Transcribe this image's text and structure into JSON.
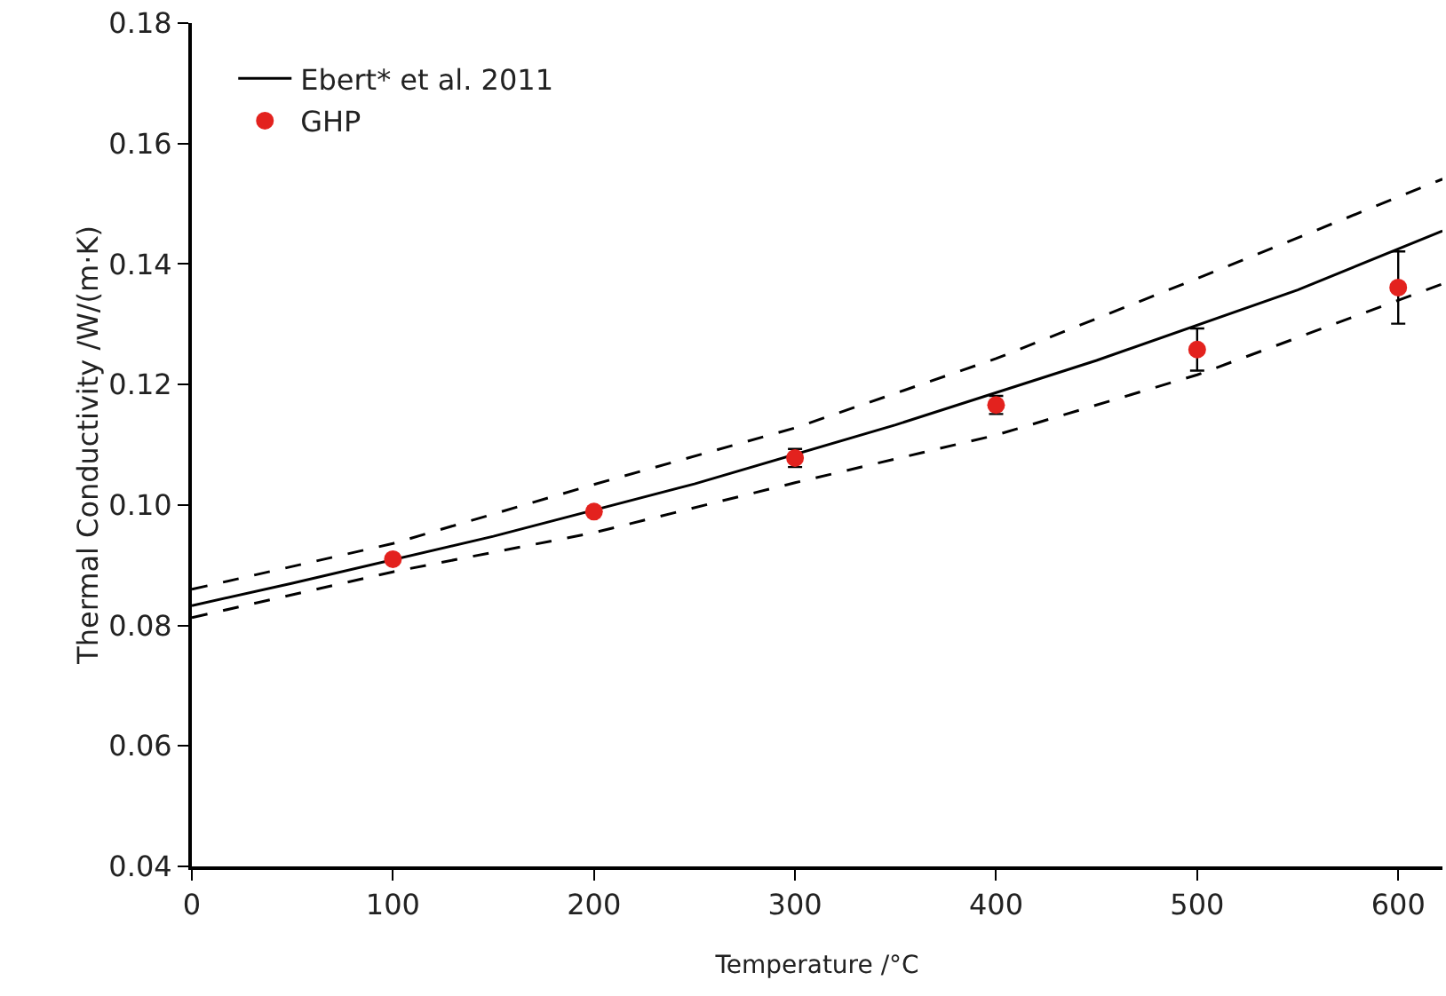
{
  "chart_data": {
    "type": "line",
    "xlabel": "Temperature /°C",
    "ylabel": "Thermal Conductivity /W/(m·K)",
    "xlim": [
      0,
      622
    ],
    "ylim": [
      0.04,
      0.18
    ],
    "xticks": [
      0,
      100,
      200,
      300,
      400,
      500,
      600
    ],
    "yticks": [
      {
        "value": 0.04,
        "label": "0.04"
      },
      {
        "value": 0.06,
        "label": "0.06"
      },
      {
        "value": 0.08,
        "label": "0.08"
      },
      {
        "value": 0.1,
        "label": "0.10"
      },
      {
        "value": 0.12,
        "label": "0.12"
      },
      {
        "value": 0.14,
        "label": "0.14"
      },
      {
        "value": 0.16,
        "label": "0.16"
      },
      {
        "value": 0.18,
        "label": "0.18"
      }
    ],
    "grid": false,
    "legend": "top left",
    "series": [
      {
        "name": "Ebert* et al. 2011",
        "type": "line",
        "color": "#000000",
        "line_style": "solid",
        "marker": "none",
        "x": [
          0,
          50,
          150,
          250,
          350,
          450,
          550,
          622
        ],
        "values": [
          0.0833,
          0.087,
          0.0948,
          0.1035,
          0.1133,
          0.124,
          0.1357,
          0.1455
        ]
      },
      {
        "type": "line",
        "color": "#000000",
        "line_style": "dashed",
        "marker": "none",
        "x": [
          0,
          100,
          200,
          300,
          400,
          500,
          622
        ],
        "values": [
          0.086,
          0.0936,
          0.1034,
          0.1128,
          0.1243,
          0.1376,
          0.1541
        ]
      },
      {
        "type": "line",
        "color": "#000000",
        "line_style": "dashed",
        "marker": "none",
        "x": [
          0,
          100,
          200,
          300,
          400,
          500,
          622
        ],
        "values": [
          0.0813,
          0.0889,
          0.0954,
          0.1037,
          0.1116,
          0.1216,
          0.1367
        ]
      },
      {
        "name": "GHP",
        "type": "scatter",
        "color": "#e3221e",
        "marker": "circle",
        "x": [
          100,
          200,
          300,
          400,
          500,
          600
        ],
        "values": [
          0.091,
          0.0989,
          0.1078,
          0.1166,
          0.1258,
          0.1361
        ],
        "errors": [
          0.0005,
          0.0005,
          0.0015,
          0.0015,
          0.0035,
          0.006
        ]
      }
    ]
  }
}
